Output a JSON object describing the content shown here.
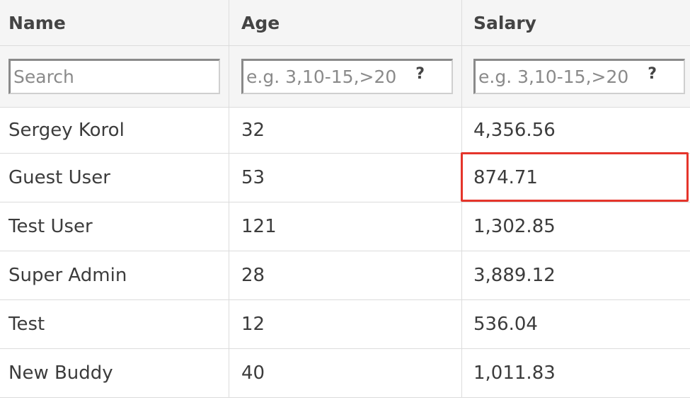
{
  "table": {
    "columns": [
      {
        "label": "Name"
      },
      {
        "label": "Age"
      },
      {
        "label": "Salary"
      }
    ],
    "filters": {
      "name_placeholder": "Search",
      "age_placeholder": "e.g. 3,10-15,>20",
      "salary_placeholder": "e.g. 3,10-15,>20",
      "help_glyph": "?"
    },
    "rows": [
      {
        "name": "Sergey Korol",
        "age": "32",
        "salary": "4,356.56"
      },
      {
        "name": "Guest User",
        "age": "53",
        "salary": "874.71"
      },
      {
        "name": "Test User",
        "age": "121",
        "salary": "1,302.85"
      },
      {
        "name": "Super Admin",
        "age": "28",
        "salary": "3,889.12"
      },
      {
        "name": "Test",
        "age": "12",
        "salary": "536.04"
      },
      {
        "name": "New Buddy",
        "age": "40",
        "salary": "1,011.83"
      }
    ]
  },
  "highlight": {
    "color": "#e5352b"
  },
  "colors": {
    "header_bg": "#f5f5f5",
    "border": "#dcdcdc",
    "text": "#3c3c3c"
  }
}
